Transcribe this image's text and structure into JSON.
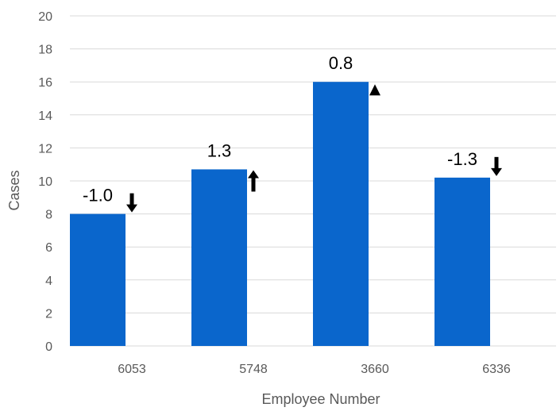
{
  "chart_data": {
    "type": "bar",
    "title": "",
    "xlabel": "Employee Number",
    "ylabel": "Cases",
    "ylim": [
      0,
      20
    ],
    "ytick_step": 2,
    "grid": true,
    "legend": "none",
    "categories": [
      "6053",
      "5748",
      "3660",
      "6336"
    ],
    "values": [
      8,
      10.7,
      16,
      10.2
    ],
    "data_labels": [
      "-1.0",
      "1.3",
      "0.8",
      "-1.3"
    ],
    "trend_icons": [
      "arrow-down-icon",
      "arrow-up-icon",
      "triangle-up-icon",
      "arrow-down-icon"
    ],
    "colors": {
      "bar": "#0a66cc",
      "grid": "#d9d9d9",
      "axis_text": "#595959",
      "label": "#000000"
    }
  }
}
